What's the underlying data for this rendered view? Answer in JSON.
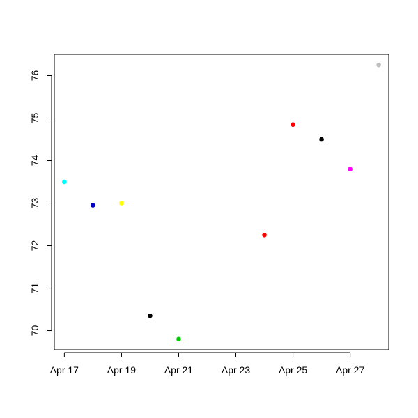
{
  "chart_data": {
    "type": "scatter",
    "title": "",
    "xlabel": "",
    "ylabel": "",
    "x_tick_labels": [
      "Apr 17",
      "Apr 19",
      "Apr 21",
      "Apr 23",
      "Apr 25",
      "Apr 27"
    ],
    "x_tick_dates": [
      "2024-04-17",
      "2024-04-19",
      "2024-04-21",
      "2024-04-23",
      "2024-04-25",
      "2024-04-27"
    ],
    "y_ticks": [
      70,
      71,
      72,
      73,
      74,
      75,
      76
    ],
    "xlim": [
      "2024-04-16.65",
      "2024-04-28.35"
    ],
    "ylim": [
      69.55,
      76.5
    ],
    "grid": false,
    "legend": "none",
    "points": [
      {
        "x": "2024-04-17",
        "y": 73.5,
        "color": "#00ffff"
      },
      {
        "x": "2024-04-18",
        "y": 72.95,
        "color": "#0000cd"
      },
      {
        "x": "2024-04-19",
        "y": 73.0,
        "color": "#ffff00"
      },
      {
        "x": "2024-04-20",
        "y": 70.35,
        "color": "#000000"
      },
      {
        "x": "2024-04-21",
        "y": 69.8,
        "color": "#00cd00"
      },
      {
        "x": "2024-04-24",
        "y": 72.25,
        "color": "#ff0000"
      },
      {
        "x": "2024-04-25",
        "y": 74.85,
        "color": "#ff0000"
      },
      {
        "x": "2024-04-26",
        "y": 74.5,
        "color": "#000000"
      },
      {
        "x": "2024-04-27",
        "y": 73.8,
        "color": "#ff00ff"
      },
      {
        "x": "2024-04-28",
        "y": 76.25,
        "color": "#bebebe"
      }
    ]
  }
}
